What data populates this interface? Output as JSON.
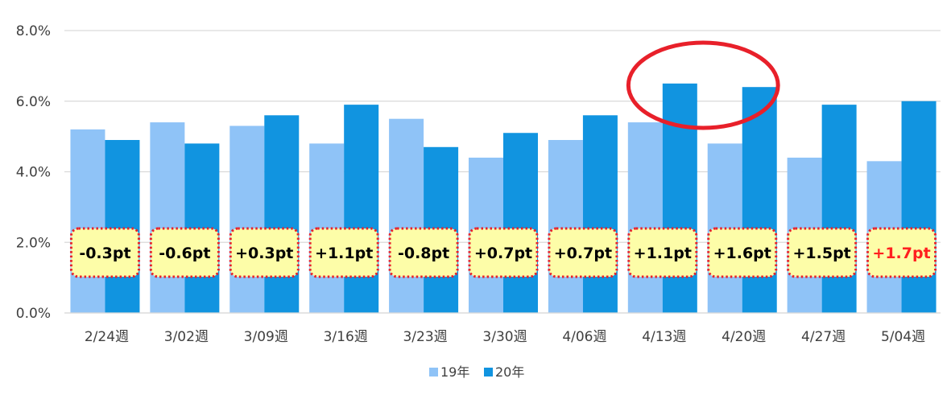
{
  "chart_data": {
    "type": "bar",
    "categories": [
      "2/24週",
      "3/02週",
      "3/09週",
      "3/16週",
      "3/23週",
      "3/30週",
      "4/06週",
      "4/13週",
      "4/20週",
      "4/27週",
      "5/04週"
    ],
    "series": [
      {
        "name": "19年",
        "color": "#8fc3f7",
        "values": [
          5.2,
          5.4,
          5.3,
          4.8,
          5.5,
          4.4,
          4.9,
          5.4,
          4.8,
          4.4,
          4.3
        ]
      },
      {
        "name": "20年",
        "color": "#1194e0",
        "values": [
          4.9,
          4.8,
          5.6,
          5.9,
          4.7,
          5.1,
          5.6,
          6.5,
          6.4,
          5.9,
          6.0
        ]
      }
    ],
    "ylim": [
      0,
      8
    ],
    "yticks": [
      "0.0%",
      "2.0%",
      "4.0%",
      "6.0%",
      "8.0%"
    ],
    "grid": true,
    "legend_position": "bottom",
    "annotations": [
      {
        "text": "-0.3pt",
        "highlight": false
      },
      {
        "text": "-0.6pt",
        "highlight": false
      },
      {
        "text": "+0.3pt",
        "highlight": false
      },
      {
        "text": "+1.1pt",
        "highlight": false
      },
      {
        "text": "-0.8pt",
        "highlight": false
      },
      {
        "text": "+0.7pt",
        "highlight": false
      },
      {
        "text": "+0.7pt",
        "highlight": false
      },
      {
        "text": "+1.1pt",
        "highlight": false
      },
      {
        "text": "+1.6pt",
        "highlight": false
      },
      {
        "text": "+1.5pt",
        "highlight": false
      },
      {
        "text": "+1.7pt",
        "highlight": true
      }
    ],
    "annotation_box_color": "#fdfda8",
    "annotation_border_color": "#e8202a",
    "highlight_text_color": "#ff1f1f",
    "circled_categories": [
      "4/13週",
      "4/20週"
    ],
    "circle_color": "#e8202a"
  }
}
